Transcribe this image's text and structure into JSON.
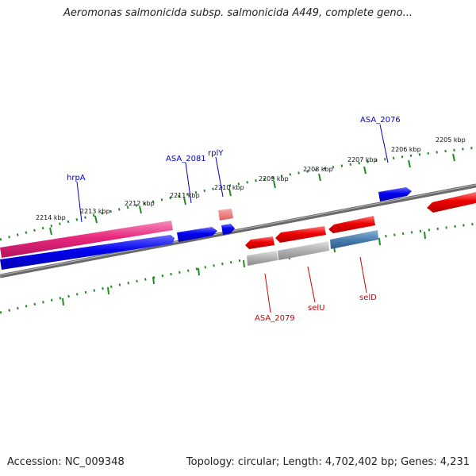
{
  "header": {
    "title": "Aeromonas salmonicida subsp. salmonicida A449, complete geno..."
  },
  "footer": {
    "accession": "Accession: NC_009348",
    "summary": "Topology: circular; Length: 4,702,402 bp; Genes: 4,231"
  },
  "colors": {
    "backbone": "#808080",
    "tick": "#228b22",
    "forward_label": "#0000cc",
    "reverse_label": "#cc0000",
    "forward_cds": "#0000ee",
    "reverse_cds": "#ee0000",
    "pink_feature": "#e8287d",
    "gray_feature": "#aaaaaa",
    "steel_feature": "#4a7fb0"
  },
  "scale": {
    "tick_labels": [
      "2214 kbp",
      "2213 kbp",
      "2212 kbp",
      "2211 kbp",
      "2210 kbp",
      "2209 kbp",
      "2208 kbp",
      "2207 kbp",
      "2206 kbp",
      "2205 kbp"
    ]
  },
  "labels": {
    "hrpA": "hrpA",
    "asa2081": "ASA_2081",
    "rplY": "rplY",
    "asa2076": "ASA_2076",
    "asa2079": "ASA_2079",
    "selU": "selU",
    "selD": "selD"
  }
}
